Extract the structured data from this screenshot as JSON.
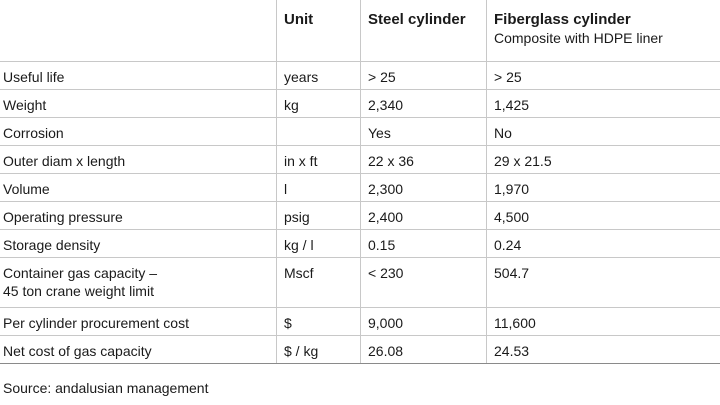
{
  "header": {
    "col_unit": "Unit",
    "col_steel": "Steel cylinder",
    "col_fiberglass": "Fiberglass cylinder",
    "col_fiberglass_sub": "Composite with HDPE liner"
  },
  "rows": [
    {
      "label": "Useful life",
      "unit": "years",
      "steel": "> 25",
      "fiberglass": "> 25"
    },
    {
      "label": "Weight",
      "unit": "kg",
      "steel": "2,340",
      "fiberglass": "1,425"
    },
    {
      "label": "Corrosion",
      "unit": "",
      "steel": "Yes",
      "fiberglass": "No"
    },
    {
      "label": "Outer diam x length",
      "unit": "in x ft",
      "steel": "22 x 36",
      "fiberglass": "29 x 21.5"
    },
    {
      "label": "Volume",
      "unit": "l",
      "steel": "2,300",
      "fiberglass": "1,970"
    },
    {
      "label": "Operating pressure",
      "unit": "psig",
      "steel": "2,400",
      "fiberglass": "4,500"
    },
    {
      "label": "Storage density",
      "unit": "kg / l",
      "steel": "0.15",
      "fiberglass": "0.24"
    },
    {
      "label_line1": "Container gas capacity –",
      "label_line2": "45 ton crane weight limit",
      "unit": "Mscf",
      "steel": "< 230",
      "fiberglass": "504.7"
    },
    {
      "label": "Per cylinder procurement cost",
      "unit": "$",
      "steel": "9,000",
      "fiberglass": "11,600"
    },
    {
      "label": "Net cost of gas capacity",
      "unit": "$ / kg",
      "steel": "26.08",
      "fiberglass": "24.53"
    }
  ],
  "source": "Source: andalusian management"
}
